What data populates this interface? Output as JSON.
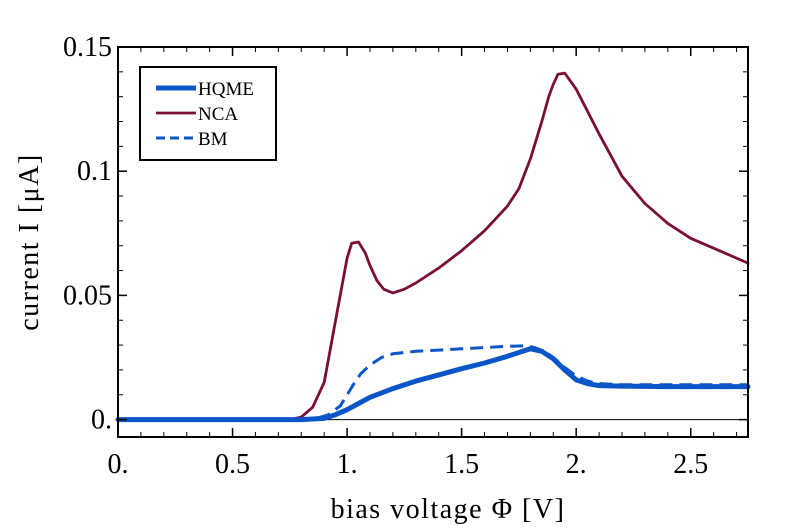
{
  "chart_data": {
    "type": "line",
    "xlabel": "bias voltage Φ [V]",
    "ylabel": "current I [μA]",
    "xlim": [
      0,
      2.75
    ],
    "ylim": [
      -0.007,
      0.15
    ],
    "xticks": [
      {
        "value": 0,
        "label": "0."
      },
      {
        "value": 0.5,
        "label": "0.5"
      },
      {
        "value": 1,
        "label": "1."
      },
      {
        "value": 1.5,
        "label": "1.5"
      },
      {
        "value": 2,
        "label": "2."
      },
      {
        "value": 2.5,
        "label": "2.5"
      }
    ],
    "yticks": [
      {
        "value": 0,
        "label": "0."
      },
      {
        "value": 0.05,
        "label": "0.05"
      },
      {
        "value": 0.1,
        "label": "0.1"
      },
      {
        "value": 0.15,
        "label": "0.15"
      }
    ],
    "legend_position": "top-left",
    "series": [
      {
        "name": "HQME",
        "color": "#0a55c8",
        "style": "solid-thick",
        "x": [
          0,
          0.5,
          0.8,
          0.9,
          0.95,
          1.0,
          1.05,
          1.1,
          1.2,
          1.3,
          1.4,
          1.5,
          1.6,
          1.7,
          1.75,
          1.8,
          1.85,
          1.9,
          1.95,
          2.0,
          2.05,
          2.1,
          2.2,
          2.4,
          2.6,
          2.75
        ],
        "y": [
          0,
          0,
          0,
          0.0005,
          0.002,
          0.004,
          0.0065,
          0.009,
          0.0125,
          0.0155,
          0.018,
          0.0205,
          0.0228,
          0.0255,
          0.027,
          0.0285,
          0.0275,
          0.0245,
          0.02,
          0.016,
          0.0145,
          0.0137,
          0.0135,
          0.0133,
          0.0133,
          0.0133
        ]
      },
      {
        "name": "NCA",
        "color": "#7a0f30",
        "style": "solid",
        "x": [
          0,
          0.5,
          0.75,
          0.8,
          0.85,
          0.9,
          0.95,
          0.98,
          1.0,
          1.02,
          1.05,
          1.08,
          1.1,
          1.13,
          1.16,
          1.2,
          1.25,
          1.3,
          1.4,
          1.5,
          1.6,
          1.7,
          1.75,
          1.8,
          1.85,
          1.88,
          1.9,
          1.92,
          1.95,
          2.0,
          2.1,
          2.2,
          2.3,
          2.4,
          2.5,
          2.6,
          2.75
        ],
        "y": [
          0,
          0,
          0,
          0.001,
          0.005,
          0.015,
          0.04,
          0.055,
          0.065,
          0.071,
          0.0715,
          0.067,
          0.062,
          0.056,
          0.0525,
          0.051,
          0.0525,
          0.055,
          0.061,
          0.068,
          0.076,
          0.086,
          0.093,
          0.105,
          0.12,
          0.13,
          0.135,
          0.139,
          0.1395,
          0.133,
          0.115,
          0.098,
          0.087,
          0.079,
          0.073,
          0.069,
          0.063
        ]
      },
      {
        "name": "BM",
        "color": "#0a55c8",
        "style": "dashed",
        "x": [
          0,
          0.5,
          0.85,
          0.92,
          0.97,
          1.0,
          1.03,
          1.06,
          1.1,
          1.15,
          1.2,
          1.3,
          1.4,
          1.5,
          1.6,
          1.7,
          1.78,
          1.82,
          1.86,
          1.9,
          1.95,
          2.0,
          2.05,
          2.1,
          2.2,
          2.4,
          2.6,
          2.75
        ],
        "y": [
          0,
          0,
          0,
          0.002,
          0.0055,
          0.01,
          0.0145,
          0.0185,
          0.022,
          0.025,
          0.0265,
          0.0275,
          0.028,
          0.0285,
          0.029,
          0.0295,
          0.0297,
          0.029,
          0.0275,
          0.025,
          0.021,
          0.0175,
          0.0155,
          0.0145,
          0.014,
          0.014,
          0.014,
          0.014
        ]
      }
    ]
  }
}
